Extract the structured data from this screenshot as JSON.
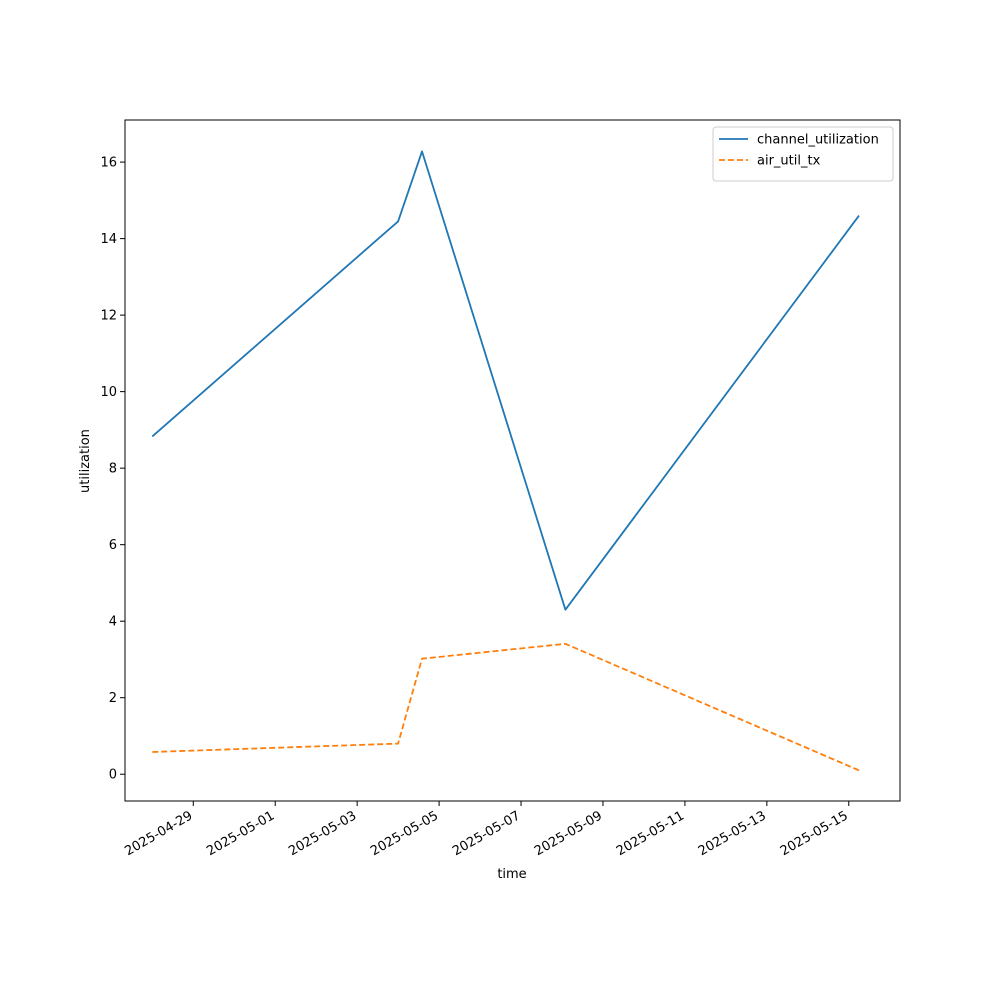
{
  "chart_data": {
    "type": "line",
    "xlabel": "time",
    "ylabel": "utilization",
    "x_scale": "date",
    "xlim": [
      "2025-04-27T08:00",
      "2025-05-16T06:00"
    ],
    "ylim": [
      -0.7,
      17.1
    ],
    "x_ticks": [
      "2025-04-29",
      "2025-05-01",
      "2025-05-03",
      "2025-05-05",
      "2025-05-07",
      "2025-05-09",
      "2025-05-11",
      "2025-05-13",
      "2025-05-15"
    ],
    "y_ticks": [
      0,
      2,
      4,
      6,
      8,
      10,
      12,
      14,
      16
    ],
    "grid": false,
    "legend_position": "top-right",
    "series": [
      {
        "name": "channel_utilization",
        "color": "#1f77b4",
        "style": "solid",
        "points": [
          {
            "x": "2025-04-28T00:00",
            "y": 8.83
          },
          {
            "x": "2025-05-04T00:00",
            "y": 14.45
          },
          {
            "x": "2025-05-04T14:00",
            "y": 16.28
          },
          {
            "x": "2025-05-08T02:00",
            "y": 4.3
          },
          {
            "x": "2025-05-15T06:00",
            "y": 14.6
          }
        ]
      },
      {
        "name": "air_util_tx",
        "color": "#ff7f0e",
        "style": "dashed",
        "points": [
          {
            "x": "2025-04-28T00:00",
            "y": 0.58
          },
          {
            "x": "2025-05-04T00:00",
            "y": 0.8
          },
          {
            "x": "2025-05-04T14:00",
            "y": 3.02
          },
          {
            "x": "2025-05-08T02:00",
            "y": 3.41
          },
          {
            "x": "2025-05-15T06:00",
            "y": 0.1
          }
        ]
      }
    ]
  }
}
